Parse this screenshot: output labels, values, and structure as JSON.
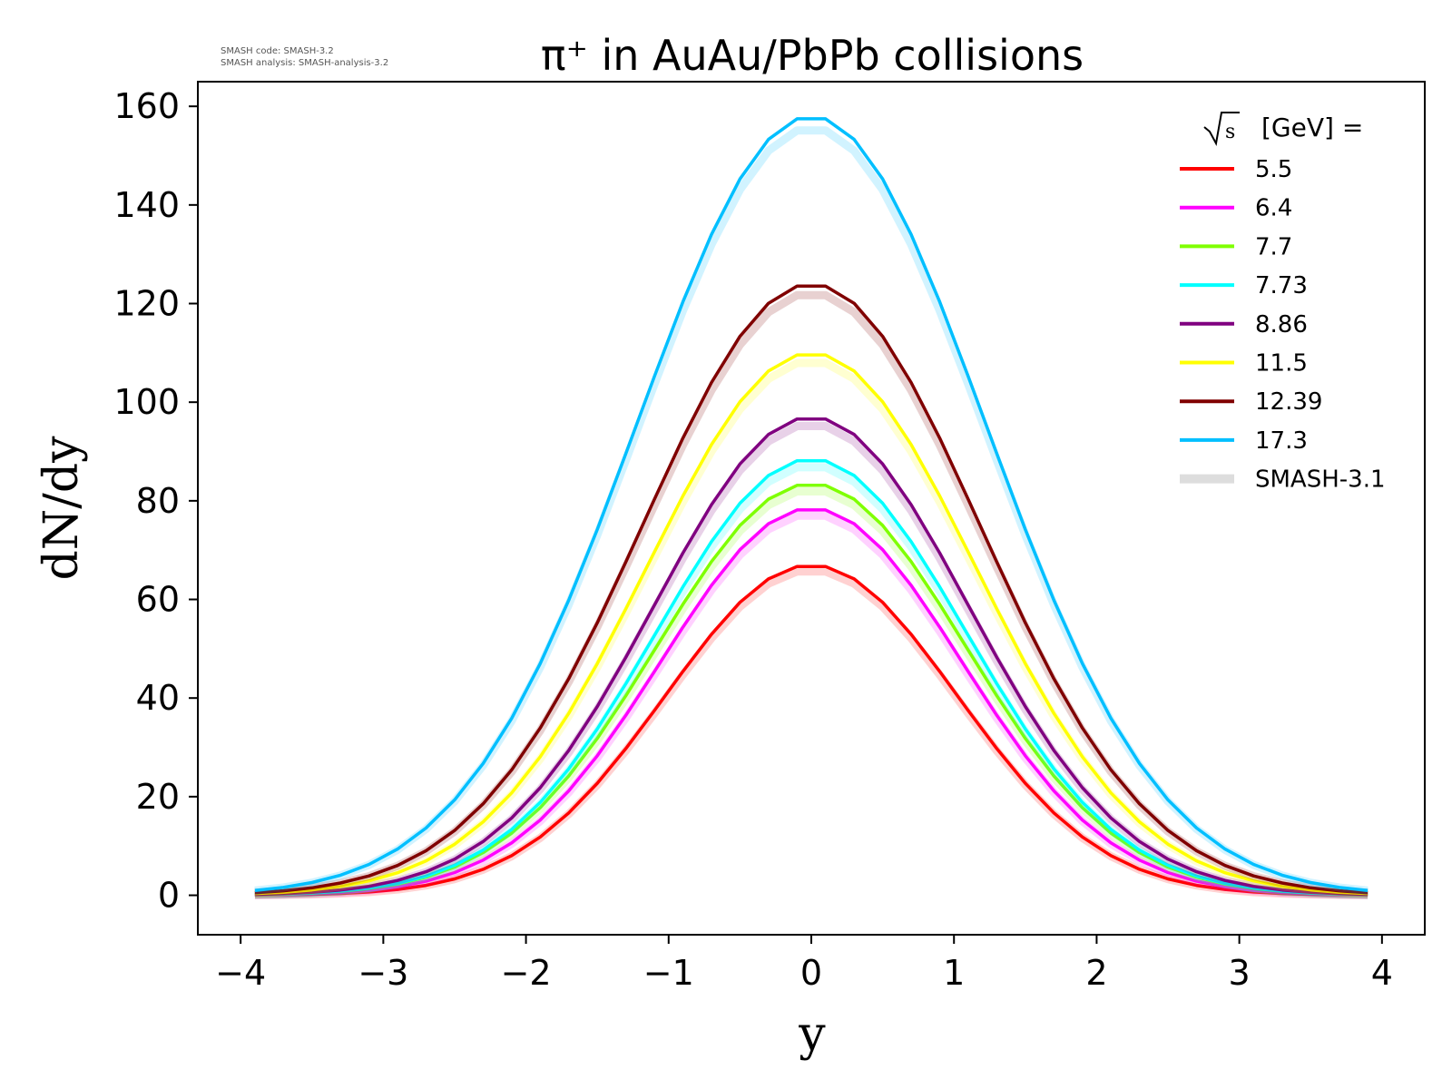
{
  "watermark": {
    "line1": "SMASH code:      SMASH-3.2",
    "line2": "SMASH analysis: SMASH-analysis-3.2"
  },
  "chart_data": {
    "type": "line",
    "title": "π⁺ in AuAu/PbPb collisions",
    "xlabel": "y",
    "ylabel": "dN/dy",
    "xlim": [
      -4.3,
      4.3
    ],
    "ylim": [
      -8,
      165
    ],
    "xticks": [
      -4,
      -3,
      -2,
      -1,
      0,
      1,
      2,
      3,
      4
    ],
    "xtick_labels": [
      "−4",
      "−3",
      "−2",
      "−1",
      "0",
      "1",
      "2",
      "3",
      "4"
    ],
    "yticks": [
      0,
      20,
      40,
      60,
      80,
      100,
      120,
      140,
      160
    ],
    "ytick_labels": [
      "0",
      "20",
      "40",
      "60",
      "80",
      "100",
      "120",
      "140",
      "160"
    ],
    "grid": false,
    "legend": {
      "placement": "top-right",
      "title": "[GeV] =",
      "title_symbol": "√s",
      "reference_label": "SMASH-3.1",
      "reference_color": "#dddddd"
    },
    "x": [
      -3.9,
      -3.7,
      -3.5,
      -3.3,
      -3.1,
      -2.9,
      -2.7,
      -2.5,
      -2.3,
      -2.1,
      -1.9,
      -1.7,
      -1.5,
      -1.3,
      -1.1,
      -0.9,
      -0.7,
      -0.5,
      -0.3,
      -0.1,
      0.1,
      0.3,
      0.5,
      0.7,
      0.9,
      1.1,
      1.3,
      1.5,
      1.7,
      1.9,
      2.1,
      2.3,
      2.5,
      2.7,
      2.9,
      3.1,
      3.3,
      3.5,
      3.7,
      3.9
    ],
    "series": [
      {
        "name": "5.5",
        "color": "#ff0000",
        "peak": 67,
        "sigma": 1.02
      },
      {
        "name": "6.4",
        "color": "#ff00ff",
        "peak": 78.5,
        "sigma": 1.05
      },
      {
        "name": "7.7",
        "color": "#7fff00",
        "peak": 83.5,
        "sigma": 1.08
      },
      {
        "name": "7.73",
        "color": "#00ffff",
        "peak": 88.5,
        "sigma": 1.08
      },
      {
        "name": "8.86",
        "color": "#800080",
        "peak": 97,
        "sigma": 1.1
      },
      {
        "name": "11.5",
        "color": "#ffff00",
        "peak": 110,
        "sigma": 1.15
      },
      {
        "name": "12.39",
        "color": "#800000",
        "peak": 124,
        "sigma": 1.18
      },
      {
        "name": "17.3",
        "color": "#00bfff",
        "peak": 158,
        "sigma": 1.22
      }
    ]
  }
}
